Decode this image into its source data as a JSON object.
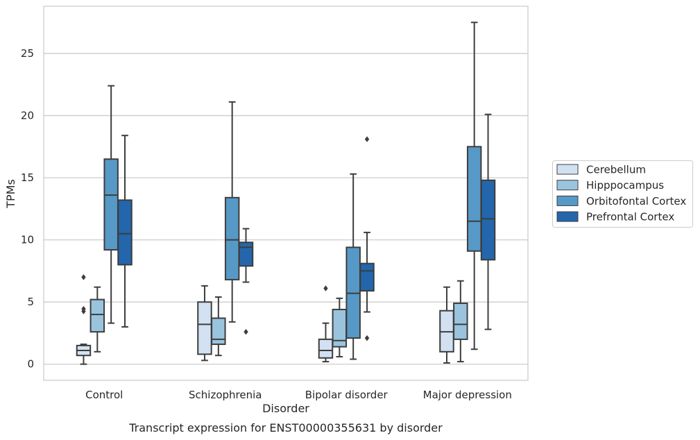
{
  "caption": "Transcript expression for ENST00000355631 by disorder",
  "chart_data": {
    "type": "boxplot",
    "xlabel": "Disorder",
    "ylabel": "TPMs",
    "ylim": [
      -1.3,
      28.8
    ],
    "yticks": [
      0,
      5,
      10,
      15,
      20,
      25
    ],
    "grid": "horizontal",
    "legend_position": "right",
    "categories": [
      "Control",
      "Schizophrenia",
      "Bipolar disorder",
      "Major depression"
    ],
    "series": [
      {
        "name": "Cerebellum",
        "color": "#d2e1f2",
        "boxes": [
          {
            "whislo": 0.0,
            "q1": 0.7,
            "med": 1.1,
            "q3": 1.5,
            "whishi": 1.6,
            "fliers": [
              4.25,
              4.45,
              7.0
            ]
          },
          {
            "whislo": 0.3,
            "q1": 0.8,
            "med": 3.2,
            "q3": 5.0,
            "whishi": 6.3,
            "fliers": []
          },
          {
            "whislo": 0.2,
            "q1": 0.5,
            "med": 1.1,
            "q3": 2.0,
            "whishi": 3.3,
            "fliers": [
              6.1
            ]
          },
          {
            "whislo": 0.1,
            "q1": 1.0,
            "med": 2.6,
            "q3": 4.3,
            "whishi": 6.2,
            "fliers": []
          }
        ]
      },
      {
        "name": "Hipppocampus",
        "color": "#9ac4de",
        "boxes": [
          {
            "whislo": 1.0,
            "q1": 2.6,
            "med": 4.0,
            "q3": 5.2,
            "whishi": 6.2,
            "fliers": []
          },
          {
            "whislo": 0.7,
            "q1": 1.6,
            "med": 2.0,
            "q3": 3.7,
            "whishi": 5.4,
            "fliers": []
          },
          {
            "whislo": 0.6,
            "q1": 1.4,
            "med": 1.9,
            "q3": 4.4,
            "whishi": 5.3,
            "fliers": []
          },
          {
            "whislo": 0.2,
            "q1": 2.0,
            "med": 3.2,
            "q3": 4.9,
            "whishi": 6.7,
            "fliers": []
          }
        ]
      },
      {
        "name": "Orbitofontal Cortex",
        "color": "#5799c6",
        "boxes": [
          {
            "whislo": 3.3,
            "q1": 9.2,
            "med": 13.6,
            "q3": 16.5,
            "whishi": 22.4,
            "fliers": []
          },
          {
            "whislo": 3.4,
            "q1": 6.8,
            "med": 10.0,
            "q3": 13.4,
            "whishi": 21.1,
            "fliers": []
          },
          {
            "whislo": 0.4,
            "q1": 2.1,
            "med": 5.7,
            "q3": 9.4,
            "whishi": 15.3,
            "fliers": []
          },
          {
            "whislo": 1.2,
            "q1": 9.1,
            "med": 11.5,
            "q3": 17.5,
            "whishi": 27.5,
            "fliers": []
          }
        ]
      },
      {
        "name": "Prefrontal Cortex",
        "color": "#2366ac",
        "boxes": [
          {
            "whislo": 3.0,
            "q1": 8.0,
            "med": 10.5,
            "q3": 13.2,
            "whishi": 18.4,
            "fliers": []
          },
          {
            "whislo": 6.6,
            "q1": 7.9,
            "med": 9.4,
            "q3": 9.8,
            "whishi": 10.9,
            "fliers": [
              2.6
            ]
          },
          {
            "whislo": 4.2,
            "q1": 5.9,
            "med": 7.5,
            "q3": 8.1,
            "whishi": 10.6,
            "fliers": [
              2.1,
              18.1
            ]
          },
          {
            "whislo": 2.8,
            "q1": 8.4,
            "med": 11.7,
            "q3": 14.8,
            "whishi": 20.1,
            "fliers": []
          }
        ]
      }
    ]
  }
}
